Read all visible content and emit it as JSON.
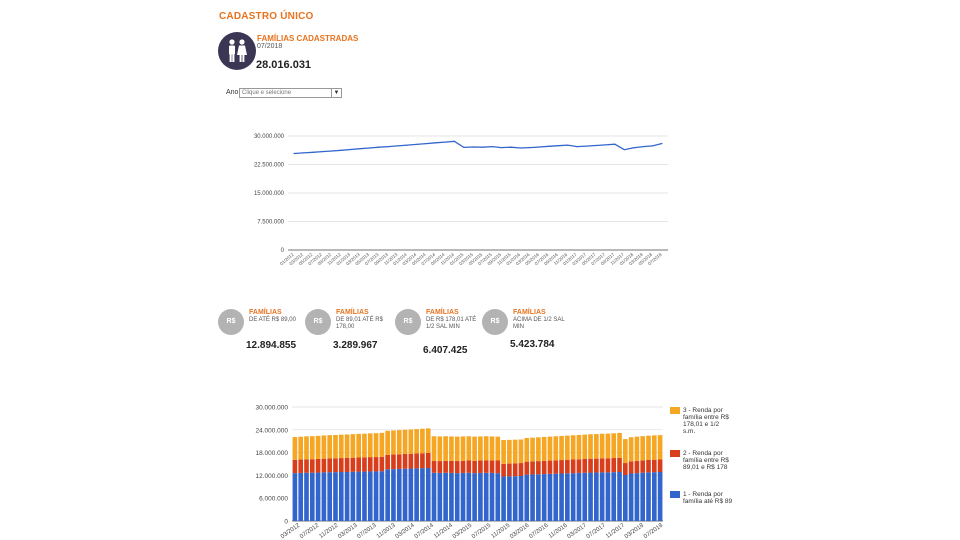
{
  "header": {
    "title": "CADASTRO ÚNICO"
  },
  "summary": {
    "label": "FAMÍLIAS CADASTRADAS",
    "date": "07/2018",
    "value": "28.016.031",
    "icon": "family-icon"
  },
  "filter": {
    "label": "Ano:",
    "placeholder": "Clique e selecione",
    "arrow": "▼"
  },
  "categories": [
    {
      "icon_text": "R$",
      "title": "FAMÍLIAS",
      "desc": "DE ATÉ R$ 89,00",
      "value": "12.894.855"
    },
    {
      "icon_text": "R$",
      "title": "FAMÍLIAS",
      "desc": "DE 89,01 ATÉ R$ 178,00",
      "value": "3.289.967"
    },
    {
      "icon_text": "R$",
      "title": "FAMÍLIAS",
      "desc": "DE R$ 178,01 ATÉ 1/2 SAL MIN",
      "value": "6.407.425"
    },
    {
      "icon_text": "R$",
      "title": "FAMÍLIAS",
      "desc": "ACIMA DE 1/2 SAL MIN",
      "value": "5.423.784"
    }
  ],
  "colors": {
    "accent": "#e8731e",
    "line": "#3366cc",
    "s1": "#3366cc",
    "s2": "#d93e1c",
    "s3": "#f5a623"
  },
  "chart_data": [
    {
      "type": "line",
      "yticks": [
        "0",
        "7.500.000",
        "15.000.000",
        "22.500.000",
        "30.000.000"
      ],
      "ylim": [
        0,
        30000000
      ],
      "categories": [
        "01/2012",
        "03/2012",
        "05/2012",
        "07/2012",
        "09/2012",
        "11/2012",
        "01/2013",
        "03/2013",
        "05/2013",
        "07/2013",
        "09/2013",
        "11/2013",
        "01/2014",
        "03/2014",
        "05/2014",
        "07/2014",
        "09/2014",
        "11/2014",
        "01/2015",
        "03/2015",
        "05/2015",
        "07/2015",
        "09/2015",
        "11/2015",
        "01/2016",
        "03/2016",
        "05/2016",
        "07/2016",
        "09/2016",
        "11/2016",
        "01/2017",
        "03/2017",
        "05/2017",
        "07/2017",
        "09/2017",
        "11/2017",
        "01/2018",
        "03/2018",
        "05/2018",
        "07/2018"
      ],
      "series": [
        {
          "name": "Famílias cadastradas",
          "values": [
            25400000,
            25550000,
            25700000,
            25900000,
            26050000,
            26250000,
            26450000,
            26650000,
            26850000,
            27050000,
            27200000,
            27400000,
            27600000,
            27800000,
            28000000,
            28200000,
            28400000,
            28600000,
            27000000,
            27100000,
            27050000,
            27200000,
            26950000,
            27050000,
            26850000,
            26950000,
            27100000,
            27300000,
            27450000,
            27600000,
            27200000,
            27350000,
            27500000,
            27650000,
            27850000,
            26400000,
            26900000,
            27200000,
            27400000,
            28016031
          ]
        }
      ]
    },
    {
      "type": "bar",
      "stacked": true,
      "yticks": [
        "0",
        "6.000.000",
        "12.000.000",
        "18.000.000",
        "24.000.000",
        "30.000.000"
      ],
      "ylim": [
        0,
        30000000
      ],
      "xtick_labels": [
        "03/2012",
        "07/2012",
        "11/2012",
        "03/2013",
        "07/2013",
        "11/2013",
        "03/2014",
        "07/2014",
        "11/2014",
        "03/2015",
        "07/2015",
        "11/2015",
        "03/2016",
        "07/2016",
        "11/2016",
        "03/2017",
        "07/2017",
        "11/2017",
        "03/2018",
        "07/2018"
      ],
      "series": [
        {
          "name": "1 - Renda por família até R$ 89",
          "values": [
            12600000,
            12650000,
            12700000,
            12700000,
            12750000,
            12800000,
            12850000,
            12850000,
            12900000,
            12900000,
            12950000,
            13000000,
            13000000,
            13050000,
            13050000,
            13100000,
            13600000,
            13650000,
            13700000,
            13750000,
            13800000,
            13850000,
            13900000,
            13950000,
            12700000,
            12650000,
            12700000,
            12650000,
            12600000,
            12650000,
            12700000,
            12600000,
            12650000,
            12700000,
            12650000,
            12600000,
            11700000,
            11750000,
            11800000,
            11850000,
            12200000,
            12250000,
            12300000,
            12350000,
            12400000,
            12450000,
            12500000,
            12550000,
            12600000,
            12650000,
            12700000,
            12750000,
            12750000,
            12800000,
            12800000,
            12850000,
            12900000,
            12100000,
            12500000,
            12600000,
            12700000,
            12800000,
            12850000,
            12894855
          ]
        },
        {
          "name": "2 - Renda por família entre R$ 89,01 e R$ 178",
          "values": [
            3500000,
            3520000,
            3540000,
            3560000,
            3580000,
            3600000,
            3620000,
            3640000,
            3660000,
            3680000,
            3700000,
            3720000,
            3740000,
            3760000,
            3780000,
            3800000,
            3820000,
            3840000,
            3860000,
            3880000,
            3900000,
            3920000,
            3940000,
            3960000,
            3100000,
            3120000,
            3140000,
            3160000,
            3180000,
            3200000,
            3220000,
            3240000,
            3260000,
            3280000,
            3300000,
            3320000,
            3340000,
            3360000,
            3380000,
            3400000,
            3420000,
            3440000,
            3460000,
            3480000,
            3500000,
            3520000,
            3540000,
            3560000,
            3580000,
            3600000,
            3620000,
            3640000,
            3660000,
            3680000,
            3700000,
            3720000,
            3740000,
            3150000,
            3200000,
            3220000,
            3240000,
            3260000,
            3280000,
            3289967
          ]
        },
        {
          "name": "3 - Renda por família entre R$ 178,01 e 1/2 s.m.",
          "values": [
            6000000,
            6020000,
            6040000,
            6060000,
            6080000,
            6100000,
            6120000,
            6140000,
            6160000,
            6180000,
            6200000,
            6220000,
            6240000,
            6260000,
            6280000,
            6300000,
            6320000,
            6340000,
            6360000,
            6380000,
            6400000,
            6420000,
            6440000,
            6460000,
            6500000,
            6480000,
            6460000,
            6440000,
            6420000,
            6400000,
            6380000,
            6360000,
            6340000,
            6320000,
            6300000,
            6280000,
            6260000,
            6240000,
            6220000,
            6200000,
            6220000,
            6240000,
            6260000,
            6280000,
            6300000,
            6320000,
            6340000,
            6360000,
            6380000,
            6400000,
            6420000,
            6440000,
            6460000,
            6480000,
            6500000,
            6520000,
            6540000,
            6300000,
            6350000,
            6380000,
            6390000,
            6400000,
            6405000,
            6407425
          ]
        }
      ]
    }
  ]
}
